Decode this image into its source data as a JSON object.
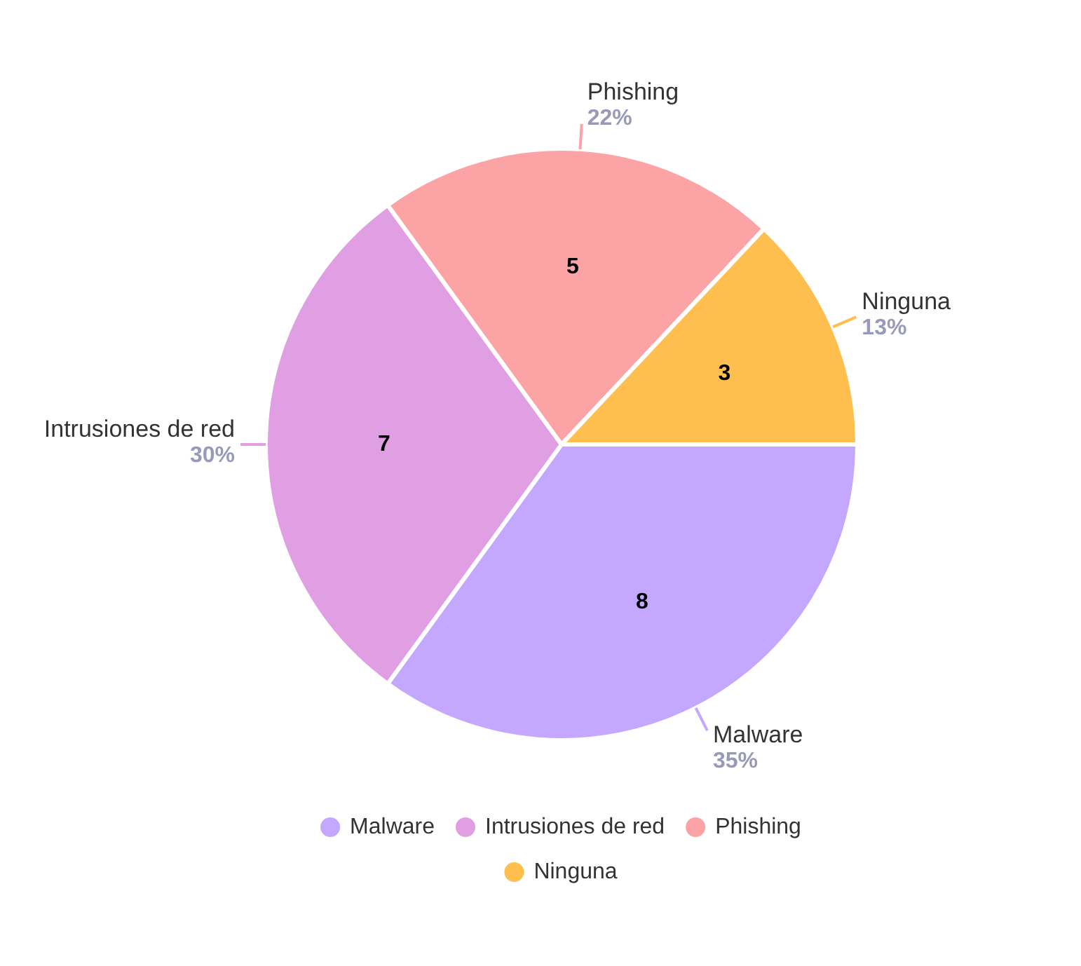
{
  "chart_data": {
    "type": "pie",
    "categories": [
      "Malware",
      "Intrusiones de red",
      "Phishing",
      "Ninguna"
    ],
    "values": [
      35,
      30,
      22,
      13
    ],
    "colors": [
      "#c4a8ff",
      "#e09ee3",
      "#fca3a6",
      "#ffbf4f"
    ],
    "value_labels": [
      "35%",
      "30%",
      "22%",
      "13%"
    ],
    "annotations": [
      {
        "text": "8",
        "x": "Malware"
      },
      {
        "text": "7",
        "x": "Intrusiones de red"
      },
      {
        "text": "5",
        "x": "Phishing"
      },
      {
        "text": "3",
        "x": "Ninguna"
      }
    ],
    "legend": "bottom"
  }
}
